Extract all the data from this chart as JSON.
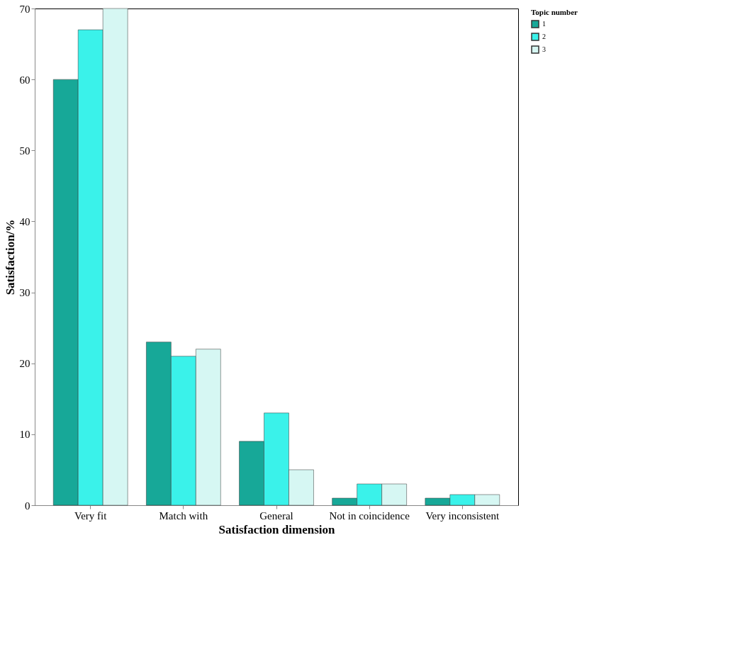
{
  "chart_data": {
    "type": "bar",
    "xlabel": "Satisfaction dimension",
    "ylabel": "Satisfaction/%",
    "legend_title": "Topic number",
    "categories": [
      "Very fit",
      "Match with",
      "General",
      "Not in coincidence",
      "Very inconsistent"
    ],
    "series": [
      {
        "name": "1",
        "color": "#17a898",
        "values": [
          60,
          23,
          9,
          1,
          1
        ]
      },
      {
        "name": "2",
        "color": "#3af2ea",
        "values": [
          67,
          21,
          13,
          3,
          1.5
        ]
      },
      {
        "name": "3",
        "color": "#d6f7f3",
        "values": [
          70,
          22,
          5,
          3,
          1.5
        ]
      }
    ],
    "ylim": [
      0,
      70
    ],
    "yticks": [
      0,
      10,
      20,
      30,
      40,
      50,
      60,
      70
    ],
    "grid": false,
    "legend": "right"
  }
}
